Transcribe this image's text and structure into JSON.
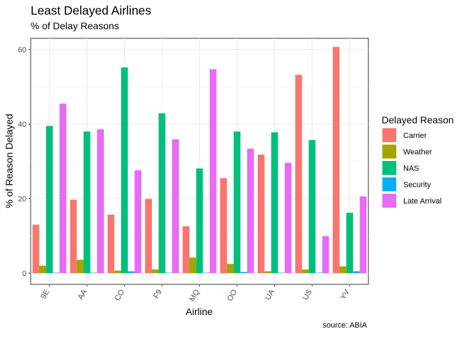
{
  "chart_data": {
    "type": "bar",
    "title": "Least Delayed Airlines",
    "subtitle": "% of Delay Reasons",
    "xlabel": "Airline",
    "ylabel": "% of Reason Delayed",
    "caption": "source: ABIA",
    "categories": [
      "9E",
      "AA",
      "CO",
      "F9",
      "MQ",
      "OO",
      "UA",
      "US",
      "YV"
    ],
    "ylim": [
      -3,
      63
    ],
    "yticks": [
      0,
      20,
      40,
      60
    ],
    "grid": true,
    "legend_title": "Delayed Reason",
    "legend_position": "right",
    "series": [
      {
        "name": "Carrier",
        "color": "#F8766D",
        "values": [
          13.0,
          19.7,
          15.7,
          19.9,
          12.6,
          25.5,
          31.8,
          53.2,
          60.7
        ]
      },
      {
        "name": "Weather",
        "color": "#A3A500",
        "values": [
          2.0,
          3.6,
          0.7,
          1.0,
          4.2,
          2.5,
          0.5,
          1.0,
          1.8
        ]
      },
      {
        "name": "NAS",
        "color": "#00BF7D",
        "values": [
          39.5,
          38.0,
          55.2,
          42.9,
          28.1,
          38.0,
          37.8,
          35.7,
          16.2
        ]
      },
      {
        "name": "Security",
        "color": "#00B0F6",
        "values": [
          0.1,
          0.1,
          0.5,
          0.1,
          0.1,
          0.3,
          0.1,
          0.1,
          0.5
        ]
      },
      {
        "name": "Late Arrival",
        "color": "#E76BF3",
        "values": [
          45.5,
          38.6,
          27.6,
          35.9,
          54.7,
          33.4,
          29.6,
          9.9,
          20.6
        ]
      }
    ]
  }
}
